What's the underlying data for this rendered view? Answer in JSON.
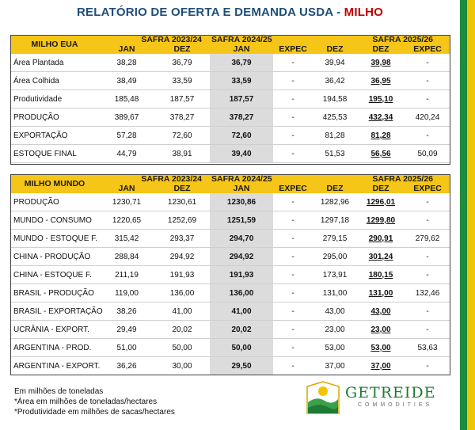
{
  "title": {
    "main": "RELATÓRIO DE OFERTA E DEMANDA USDA",
    "dash": " - ",
    "highlight": "MILHO"
  },
  "colors": {
    "header_yellow": "#f5c518",
    "title_blue": "#1f4e79",
    "title_red": "#c00000",
    "brand_green": "#1f8b3c"
  },
  "tables": [
    {
      "row_label": "MILHO EUA",
      "season1": "SAFRA 2023/24",
      "season2": "SAFRA 2024/25",
      "season3": "SAFRA 2025/26",
      "cols": [
        "JAN",
        "DEZ",
        "JAN",
        "EXPEC",
        "DEZ",
        "DEZ",
        "EXPEC"
      ],
      "rows": [
        {
          "label": "Área Plantada",
          "v": [
            "38,28",
            "36,79",
            "36,79",
            "-",
            "39,94",
            "39,98",
            "-"
          ]
        },
        {
          "label": "Área Colhida",
          "v": [
            "38,49",
            "33,59",
            "33,59",
            "-",
            "36,42",
            "36,95",
            "-"
          ]
        },
        {
          "label": "Produtividade",
          "v": [
            "185,48",
            "187,57",
            "187,57",
            "-",
            "194,58",
            "195,10",
            "-"
          ]
        },
        {
          "label": "PRODUÇÃO",
          "v": [
            "389,67",
            "378,27",
            "378,27",
            "-",
            "425,53",
            "432,34",
            "420,24"
          ]
        },
        {
          "label": "EXPORTAÇÃO",
          "v": [
            "57,28",
            "72,60",
            "72,60",
            "-",
            "81,28",
            "81,28",
            "-"
          ]
        },
        {
          "label": "ESTOQUE FINAL",
          "v": [
            "44,79",
            "38,91",
            "39,40",
            "-",
            "51,53",
            "56,56",
            "50,09"
          ]
        }
      ]
    },
    {
      "row_label": "MILHO MUNDO",
      "season1": "SAFRA 2023/24",
      "season2": "SAFRA 2024/25",
      "season3": "SAFRA 2025/26",
      "cols": [
        "JAN",
        "DEZ",
        "JAN",
        "EXPEC",
        "DEZ",
        "DEZ",
        "EXPEC"
      ],
      "rows": [
        {
          "label": "PRODUÇÃO",
          "v": [
            "1230,71",
            "1230,61",
            "1230,86",
            "-",
            "1282,96",
            "1296,01",
            "-"
          ]
        },
        {
          "label": "MUNDO - CONSUMO",
          "v": [
            "1220,65",
            "1252,69",
            "1251,59",
            "-",
            "1297,18",
            "1299,80",
            "-"
          ]
        },
        {
          "label": "MUNDO - ESTOQUE F.",
          "v": [
            "315,42",
            "293,37",
            "294,70",
            "-",
            "279,15",
            "290,91",
            "279,62"
          ]
        },
        {
          "label": "CHINA - PRODUÇÃO",
          "v": [
            "288,84",
            "294,92",
            "294,92",
            "-",
            "295,00",
            "301,24",
            "-"
          ]
        },
        {
          "label": "CHINA - ESTOQUE F.",
          "v": [
            "211,19",
            "191,93",
            "191,93",
            "-",
            "173,91",
            "180,15",
            "-"
          ]
        },
        {
          "label": "BRASIL - PRODUÇÃO",
          "v": [
            "119,00",
            "136,00",
            "136,00",
            "-",
            "131,00",
            "131,00",
            "132,46"
          ]
        },
        {
          "label": "BRASIL - EXPORTAÇÃO",
          "v": [
            "38,26",
            "41,00",
            "41,00",
            "-",
            "43,00",
            "43,00",
            "-"
          ]
        },
        {
          "label": "UCRÂNIA - EXPORT.",
          "v": [
            "29,49",
            "20,02",
            "20,02",
            "-",
            "23,00",
            "23,00",
            "-"
          ]
        },
        {
          "label": "ARGENTINA - PROD.",
          "v": [
            "51,00",
            "50,00",
            "50,00",
            "-",
            "53,00",
            "53,00",
            "53,63"
          ]
        },
        {
          "label": "ARGENTINA - EXPORT.",
          "v": [
            "36,26",
            "30,00",
            "29,50",
            "-",
            "37,00",
            "37,00",
            "-"
          ]
        }
      ]
    }
  ],
  "notes": [
    "Em milhões de toneladas",
    "*Área em milhões de toneladas/hectares",
    "*Produtividade em milhões de sacas/hectares"
  ],
  "logo": {
    "name": "GETREIDE",
    "sub": "COMMODITIES"
  }
}
